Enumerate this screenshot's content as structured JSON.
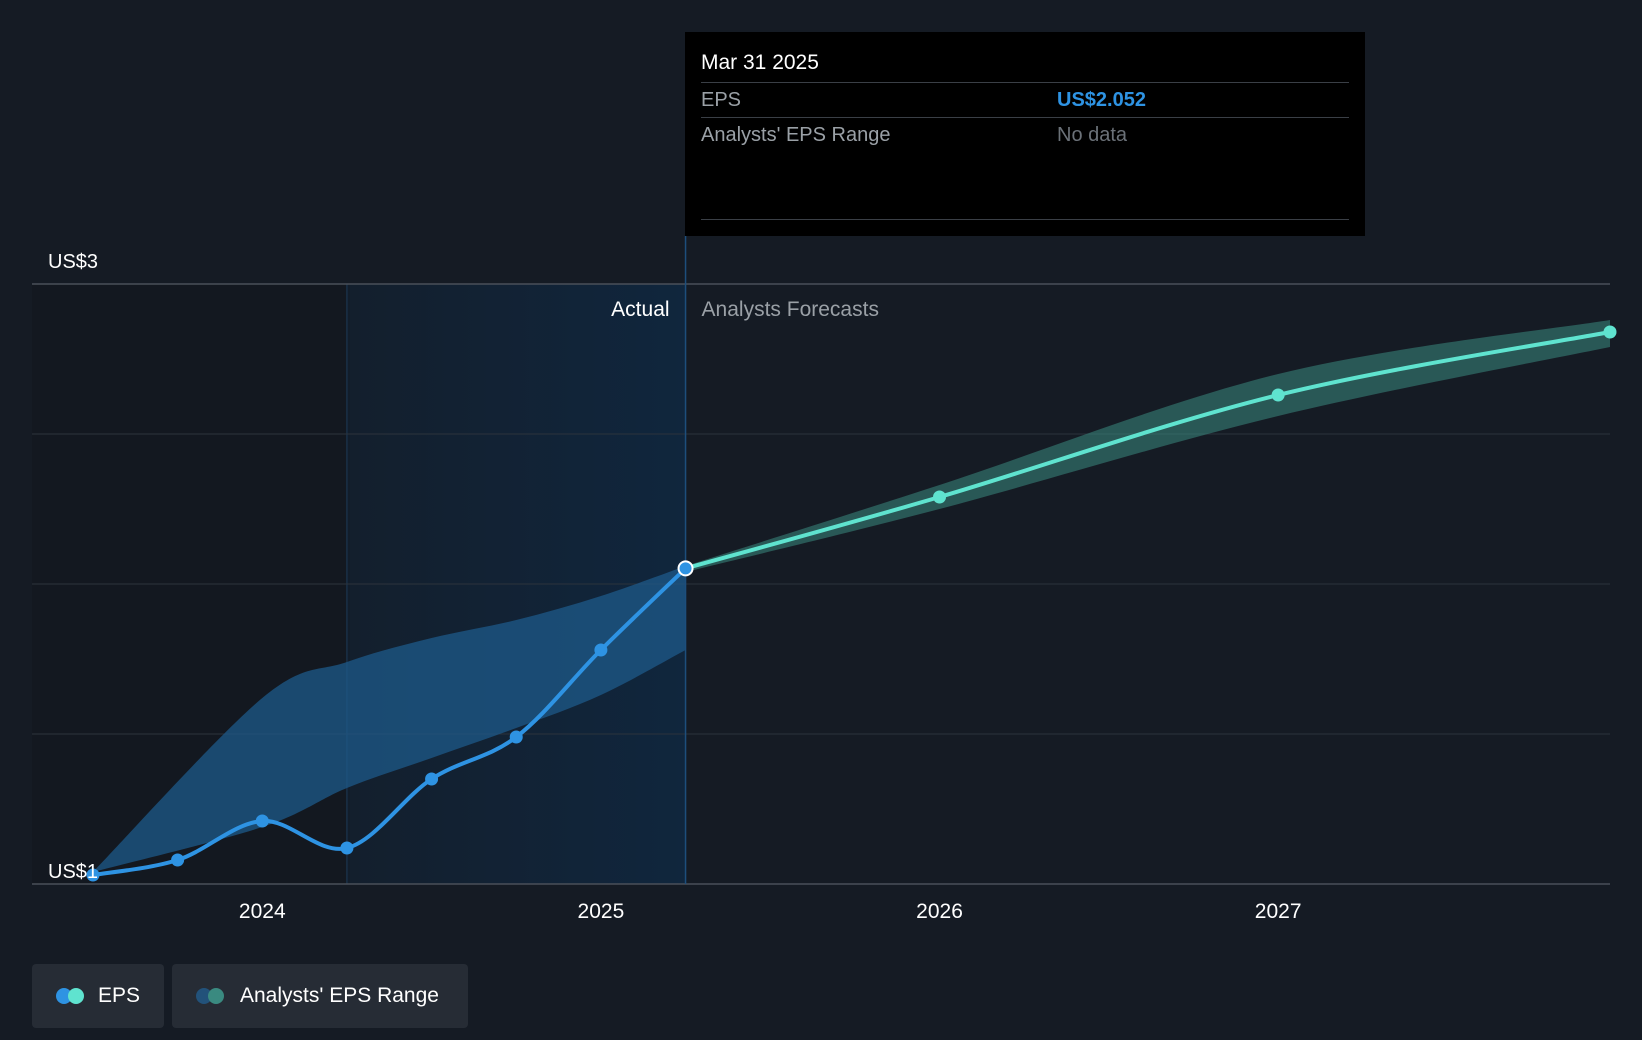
{
  "tooltip": {
    "date": "Mar 31 2025",
    "rows": [
      {
        "label": "EPS",
        "value": "US$2.052"
      },
      {
        "label": "Analysts' EPS Range",
        "value": "No data"
      }
    ]
  },
  "legend": [
    {
      "label": "EPS",
      "colors": [
        "#2e93e3",
        "#5fe3cf"
      ]
    },
    {
      "label": "Analysts' EPS Range",
      "colors": [
        "#22527a",
        "#3a8a80"
      ]
    }
  ],
  "chart_data": {
    "type": "line",
    "title": "",
    "xlabel": "",
    "ylabel": "",
    "y_ticks": [
      {
        "value": 3,
        "label": "US$3"
      },
      {
        "value": 1,
        "label": "US$1"
      }
    ],
    "x_ticks": [
      {
        "value": 2024.0,
        "label": "2024"
      },
      {
        "value": 2025.0,
        "label": "2025"
      },
      {
        "value": 2026.0,
        "label": "2026"
      },
      {
        "value": 2027.0,
        "label": "2027"
      }
    ],
    "xlim": [
      2023.32,
      2027.98
    ],
    "ylim": [
      1,
      3
    ],
    "grid": true,
    "highlight_label": "Actual",
    "forecast_label": "Analysts Forecasts",
    "highlight_start": 2024.25,
    "split_x": 2025.25,
    "colors": {
      "actual": "#2e93e3",
      "forecast": "#5fe3cf",
      "band_actual": "#1e5a8a",
      "band_forecast": "#3a8a80",
      "highlight": "#10263d"
    },
    "series": [
      {
        "name": "EPS",
        "kind": "actual",
        "x": [
          2023.5,
          2023.75,
          2024.0,
          2024.25,
          2024.5,
          2024.75,
          2025.0,
          2025.25
        ],
        "y": [
          1.03,
          1.08,
          1.21,
          1.12,
          1.35,
          1.49,
          1.78,
          2.052
        ]
      },
      {
        "name": "EPS",
        "kind": "forecast",
        "x": [
          2025.25,
          2026.0,
          2027.0,
          2027.98
        ],
        "y": [
          2.052,
          2.29,
          2.63,
          2.84
        ]
      }
    ],
    "range_bands": [
      {
        "name": "Analysts' EPS Range",
        "kind": "actual",
        "x": [
          2023.5,
          2024.0,
          2024.25,
          2024.5,
          2024.75,
          2025.0,
          2025.25
        ],
        "upper": [
          1.04,
          1.62,
          1.74,
          1.82,
          1.88,
          1.96,
          2.06
        ],
        "lower": [
          1.04,
          1.19,
          1.32,
          1.42,
          1.52,
          1.63,
          1.78
        ]
      },
      {
        "name": "Analysts' EPS Range",
        "kind": "forecast",
        "x": [
          2025.25,
          2026.0,
          2027.0,
          2027.98
        ],
        "upper": [
          2.06,
          2.33,
          2.7,
          2.88
        ],
        "lower": [
          2.04,
          2.25,
          2.56,
          2.79
        ]
      }
    ]
  }
}
